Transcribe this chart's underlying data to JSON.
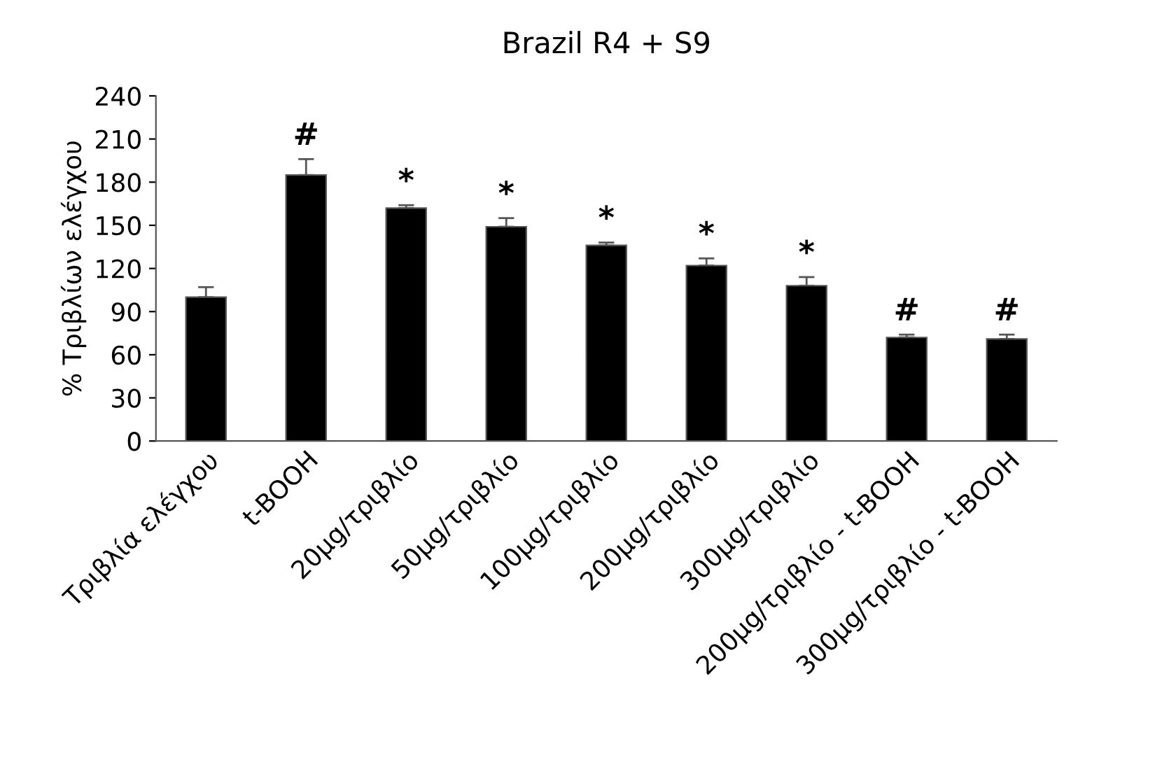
{
  "chart_data": {
    "type": "bar",
    "title": "Brazil R4 + S9",
    "ylabel": "% Τριβλίων ελέγχου",
    "categories": [
      "Τριβλία ελέγχου",
      "t-BOOH",
      "20μg/τριβλίο",
      "50μg/τριβλίο",
      "100μg/τριβλίο",
      "200μg/τριβλίο",
      "300μg/τριβλίο",
      "200μg/τριβλίο - t-BOOH",
      "300μg/τριβλίο - t-BOOH"
    ],
    "values": [
      100,
      185,
      162,
      149,
      136,
      122,
      108,
      72,
      71
    ],
    "errors": [
      [
        100,
        107
      ],
      [
        185,
        196
      ],
      [
        162,
        164
      ],
      [
        149,
        155
      ],
      [
        136,
        138
      ],
      [
        122,
        127
      ],
      [
        108,
        114
      ],
      [
        72,
        74
      ],
      [
        71,
        74
      ]
    ],
    "color": "#000000",
    "ylim": [
      0,
      240
    ],
    "yticks": [
      0,
      30,
      60,
      90,
      120,
      150,
      180,
      210,
      240
    ],
    "grid": false,
    "annotations": [
      {
        "text": "#",
        "x": "t-BOOH",
        "y": 196
      },
      {
        "text": "*",
        "x": "20μg/τριβλίο",
        "y": 164
      },
      {
        "text": "*",
        "x": "50μg/τριβλίο",
        "y": 155
      },
      {
        "text": "*",
        "x": "100μg/τριβλίο",
        "y": 138
      },
      {
        "text": "*",
        "x": "200μg/τριβλίο",
        "y": 127
      },
      {
        "text": "*",
        "x": "300μg/τριβλίο",
        "y": 114
      },
      {
        "text": "#",
        "x": "200μg/τριβλίο - t-BOOH",
        "y": 74
      },
      {
        "text": "#",
        "x": "300μg/τριβλίο - t-BOOH",
        "y": 74
      }
    ]
  }
}
